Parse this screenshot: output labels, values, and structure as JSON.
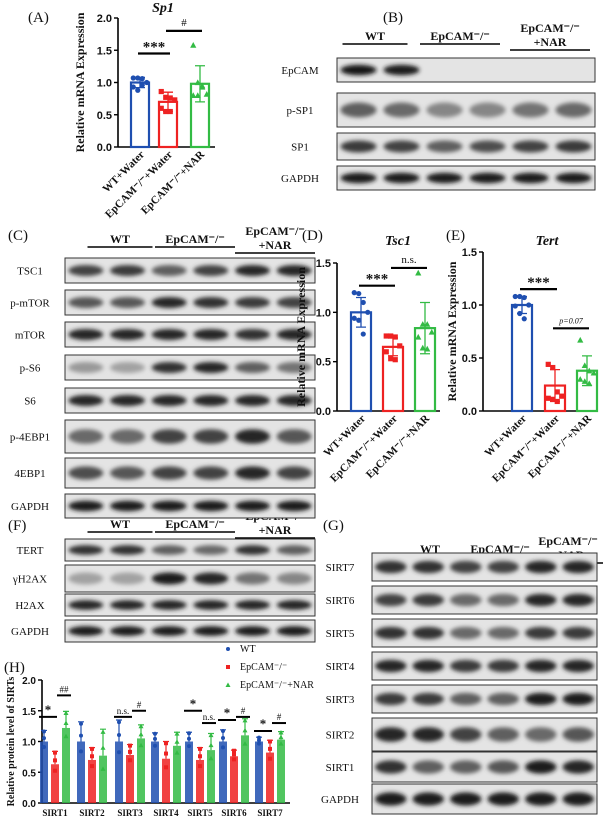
{
  "panel_labels": {
    "A": "(A)",
    "B": "(B)",
    "C": "(C)",
    "D": "(D)",
    "E": "(E)",
    "F": "(F)",
    "G": "(G)",
    "H": "(H)"
  },
  "group_headers": {
    "wt": "WT",
    "ko": "EpCAM⁻/⁻",
    "nar_line1": "EpCAM⁻/⁻",
    "nar_line2": "+NAR"
  },
  "colors": {
    "wt": "#1f4fb0",
    "ko": "#ee2222",
    "nar": "#33bb44"
  },
  "blots": {
    "B": [
      {
        "label": "EpCAM",
        "bands": [
          0.95,
          0.9,
          0,
          0,
          0,
          0
        ]
      },
      {
        "label": "p-SP1",
        "bands": [
          0.55,
          0.5,
          0.35,
          0.35,
          0.45,
          0.5
        ]
      },
      {
        "label": "SP1",
        "bands": [
          0.75,
          0.7,
          0.55,
          0.65,
          0.7,
          0.75
        ]
      },
      {
        "label": "GAPDH",
        "bands": [
          0.9,
          0.9,
          0.9,
          0.9,
          0.9,
          0.9
        ]
      }
    ],
    "C": [
      {
        "label": "TSC1",
        "bands": [
          0.7,
          0.75,
          0.55,
          0.7,
          0.85,
          0.85
        ]
      },
      {
        "label": "p-mTOR",
        "bands": [
          0.6,
          0.6,
          0.85,
          0.8,
          0.75,
          0.7
        ]
      },
      {
        "label": "mTOR",
        "bands": [
          0.85,
          0.85,
          0.85,
          0.85,
          0.8,
          0.85
        ]
      },
      {
        "label": "p-S6",
        "bands": [
          0.25,
          0.2,
          0.8,
          0.85,
          0.55,
          0.45
        ]
      },
      {
        "label": "S6",
        "bands": [
          0.85,
          0.85,
          0.85,
          0.85,
          0.85,
          0.85
        ]
      },
      {
        "label": "p-4EBP1",
        "bands": [
          0.5,
          0.5,
          0.7,
          0.7,
          0.85,
          0.6
        ]
      },
      {
        "label": "4EBP1",
        "bands": [
          0.65,
          0.6,
          0.7,
          0.7,
          0.85,
          0.7
        ]
      },
      {
        "label": "GAPDH",
        "bands": [
          0.9,
          0.9,
          0.9,
          0.9,
          0.9,
          0.9
        ]
      }
    ],
    "F": [
      {
        "label": "TERT",
        "bands": [
          0.8,
          0.8,
          0.55,
          0.5,
          0.8,
          0.55
        ]
      },
      {
        "label": "γH2AX",
        "bands": [
          0.2,
          0.2,
          0.9,
          0.85,
          0.45,
          0.35
        ]
      },
      {
        "label": "H2AX",
        "bands": [
          0.85,
          0.85,
          0.85,
          0.85,
          0.85,
          0.85
        ]
      },
      {
        "label": "GAPDH",
        "bands": [
          0.9,
          0.9,
          0.9,
          0.9,
          0.9,
          0.9
        ]
      }
    ],
    "G": [
      {
        "label": "SIRT7",
        "bands": [
          0.8,
          0.8,
          0.7,
          0.7,
          0.85,
          0.85
        ]
      },
      {
        "label": "SIRT6",
        "bands": [
          0.7,
          0.75,
          0.5,
          0.5,
          0.85,
          0.85
        ]
      },
      {
        "label": "SIRT5",
        "bands": [
          0.8,
          0.8,
          0.5,
          0.5,
          0.75,
          0.75
        ]
      },
      {
        "label": "SIRT4",
        "bands": [
          0.85,
          0.85,
          0.75,
          0.75,
          0.85,
          0.85
        ]
      },
      {
        "label": "SIRT3",
        "bands": [
          0.75,
          0.75,
          0.55,
          0.55,
          0.9,
          0.9
        ]
      },
      {
        "label": "SIRT2",
        "bands": [
          0.85,
          0.85,
          0.7,
          0.55,
          0.5,
          0.6
        ]
      },
      {
        "label": "SIRT1",
        "bands": [
          0.8,
          0.55,
          0.55,
          0.6,
          0.9,
          0.85
        ]
      },
      {
        "label": "GAPDH",
        "bands": [
          0.9,
          0.9,
          0.9,
          0.9,
          0.9,
          0.9
        ]
      }
    ]
  },
  "chart_data": [
    {
      "id": "A",
      "type": "bar",
      "title": "Sp1",
      "ylabel": "Relative mRNA Expression",
      "xlabel": "",
      "categories": [
        "WT+Water",
        "EpCAM⁻/⁻+Water",
        "EpCAM⁻/⁻+NAR"
      ],
      "values": [
        1.0,
        0.7,
        0.98
      ],
      "errors": [
        0.08,
        0.15,
        0.28
      ],
      "points": [
        [
          1.07,
          1.07,
          1.06,
          1.0,
          0.93,
          0.88,
          0.96
        ],
        [
          0.86,
          0.77,
          0.76,
          0.73,
          0.6,
          0.55,
          0.55
        ],
        [
          1.58,
          1.0,
          0.93,
          0.82,
          0.8,
          0.8,
          0.95
        ]
      ],
      "ylim": [
        0,
        2.0
      ],
      "yticks": [
        "0.0",
        "0.5",
        "1.0",
        "1.5",
        "2.0"
      ],
      "grid": false,
      "annotations": [
        {
          "text": "***",
          "from": 0,
          "to": 1,
          "y": 1.45
        },
        {
          "text": "#",
          "from": 1,
          "to": 2,
          "y": 1.8
        }
      ]
    },
    {
      "id": "D",
      "type": "bar",
      "title": "Tsc1",
      "ylabel": "Relative mRNA Expression",
      "xlabel": "",
      "categories": [
        "WT+Water",
        "EpCAM⁻/⁻+Water",
        "EpCAM⁻/⁻+NAR"
      ],
      "values": [
        1.0,
        0.65,
        0.84
      ],
      "errors": [
        0.15,
        0.09,
        0.26
      ],
      "points": [
        [
          1.2,
          1.19,
          1.1,
          1.0,
          0.94,
          0.92,
          0.78
        ],
        [
          0.76,
          0.76,
          0.75,
          0.66,
          0.6,
          0.53,
          0.52
        ],
        [
          1.4,
          0.88,
          0.88,
          0.8,
          0.75,
          0.64,
          0.63
        ]
      ],
      "ylim": [
        0,
        1.5
      ],
      "yticks": [
        "0.0",
        "0.5",
        "1.0",
        "1.5"
      ],
      "grid": false,
      "annotations": [
        {
          "text": "***",
          "from": 0,
          "to": 1,
          "y": 1.27
        },
        {
          "text": "n.s.",
          "from": 1,
          "to": 2,
          "y": 1.45
        }
      ]
    },
    {
      "id": "E",
      "type": "bar",
      "title": "Tert",
      "ylabel": "Relative mRNA Expression",
      "xlabel": "",
      "categories": [
        "WT+Water",
        "EpCAM⁻/⁻+Water",
        "EpCAM⁻/⁻+NAR"
      ],
      "values": [
        1.0,
        0.24,
        0.38
      ],
      "errors": [
        0.08,
        0.15,
        0.14
      ],
      "points": [
        [
          1.08,
          1.08,
          1.07,
          1.0,
          0.99,
          0.92,
          0.87
        ],
        [
          0.44,
          0.41,
          0.18,
          0.14,
          0.12,
          0.11,
          0.09
        ],
        [
          0.67,
          0.43,
          0.38,
          0.36,
          0.3,
          0.28,
          0.26
        ]
      ],
      "ylim": [
        0,
        1.5
      ],
      "yticks": [
        "0.0",
        "0.5",
        "1.0",
        "1.5"
      ],
      "grid": false,
      "annotations": [
        {
          "text": "***",
          "from": 0,
          "to": 1,
          "y": 1.15
        },
        {
          "text": "p=0.07",
          "from": 1,
          "to": 2,
          "y": 0.78
        }
      ]
    },
    {
      "id": "H",
      "type": "bar",
      "title": "",
      "ylabel": "Relative protein level of SIRTs",
      "xlabel": "",
      "categories": [
        "SIRT1",
        "SIRT2",
        "SIRT3",
        "SIRT4",
        "SIRT5",
        "SIRT6",
        "SIRT7"
      ],
      "series": [
        {
          "name": "WT",
          "values": [
            1.0,
            1.0,
            1.0,
            1.0,
            1.0,
            1.0,
            1.0
          ],
          "errors": [
            0.18,
            0.32,
            0.35,
            0.14,
            0.15,
            0.19,
            0.07
          ]
        },
        {
          "name": "EpCAM⁻/⁻",
          "values": [
            0.63,
            0.7,
            0.78,
            0.72,
            0.7,
            0.76,
            0.82
          ],
          "errors": [
            0.21,
            0.2,
            0.17,
            0.28,
            0.2,
            0.1,
            0.2
          ]
        },
        {
          "name": "EpCAM⁻/⁻+NAR",
          "values": [
            1.22,
            0.77,
            1.05,
            0.93,
            0.86,
            1.1,
            1.03
          ],
          "errors": [
            0.27,
            0.43,
            0.22,
            0.22,
            0.27,
            0.27,
            0.13
          ]
        }
      ],
      "legend": "top-right",
      "ylim": [
        0,
        2.0
      ],
      "yticks": [
        "0.0",
        "0.5",
        "1.0",
        "1.5",
        "2.0"
      ],
      "grid": false,
      "annotations": [
        {
          "cat": 0,
          "text": "*",
          "pair": "wt-ko",
          "y": 1.4
        },
        {
          "cat": 0,
          "text": "##",
          "pair": "ko-nar",
          "y": 1.75
        },
        {
          "cat": 2,
          "text": "n.s.",
          "pair": "wt-ko",
          "y": 1.4
        },
        {
          "cat": 2,
          "text": "#",
          "pair": "ko-nar",
          "y": 1.5
        },
        {
          "cat": 4,
          "text": "*",
          "pair": "wt-ko",
          "y": 1.5
        },
        {
          "cat": 4,
          "text": "n.s.",
          "pair": "ko-nar",
          "y": 1.3
        },
        {
          "cat": 5,
          "text": "*",
          "pair": "wt-ko",
          "y": 1.35
        },
        {
          "cat": 5,
          "text": "#",
          "pair": "ko-nar",
          "y": 1.4
        },
        {
          "cat": 6,
          "text": "*",
          "pair": "wt-ko",
          "y": 1.17
        },
        {
          "cat": 6,
          "text": "#",
          "pair": "ko-nar",
          "y": 1.3
        }
      ]
    }
  ]
}
